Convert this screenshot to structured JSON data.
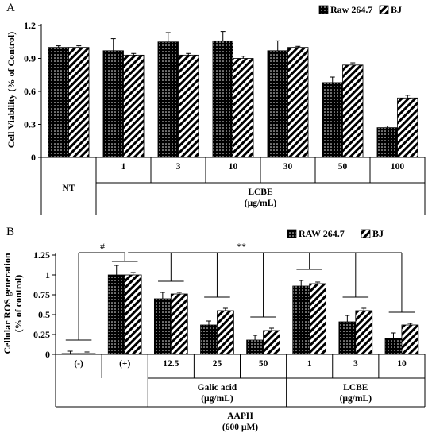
{
  "chart_data": [
    {
      "type": "bar",
      "panel_label": "A",
      "ylabel": "Cell Viability (% of Control)",
      "ylim": [
        0,
        1.2
      ],
      "yticks": [
        "0",
        "0.3",
        "0.6",
        "0.9",
        "1.2"
      ],
      "ytick_values": [
        0,
        0.3,
        0.6,
        0.9,
        1.2
      ],
      "categories": [
        "NT",
        "1",
        "3",
        "10",
        "30",
        "50",
        "100"
      ],
      "groups": [
        {
          "label": "LCBE",
          "sub": "(µg/mL)",
          "from": 1,
          "to": 6
        }
      ],
      "legend": {
        "position": "top-right"
      },
      "series": [
        {
          "name": "Raw 264.7",
          "pattern": "dots",
          "values": [
            1.0,
            0.97,
            1.05,
            1.06,
            0.97,
            0.68,
            0.27
          ],
          "errors": [
            0.015,
            0.11,
            0.085,
            0.085,
            0.09,
            0.05,
            0.015
          ]
        },
        {
          "name": "BJ",
          "pattern": "stripes",
          "values": [
            1.0,
            0.93,
            0.93,
            0.9,
            1.0,
            0.84,
            0.54
          ],
          "errors": [
            0.015,
            0.015,
            0.015,
            0.02,
            0.01,
            0.02,
            0.025
          ]
        }
      ]
    },
    {
      "type": "bar",
      "panel_label": "B",
      "ylabel": "Cellular ROS generation (% of control)",
      "ylabel_lines": [
        "Cellular ROS generation",
        "(% of control)"
      ],
      "ylim": [
        0,
        1.25
      ],
      "yticks": [
        "0",
        "0.25",
        "0.5",
        "0.75",
        "1",
        "1.25"
      ],
      "ytick_values": [
        0,
        0.25,
        0.5,
        0.75,
        1.0,
        1.25
      ],
      "categories": [
        "(-)",
        "(+)",
        "12.5",
        "25",
        "50",
        "1",
        "3",
        "10"
      ],
      "groups": [
        {
          "label": "Galic acid",
          "sub": "(µg/mL)",
          "from": 2,
          "to": 4
        },
        {
          "label": "LCBE",
          "sub": "(µg/mL)",
          "from": 5,
          "to": 7
        }
      ],
      "outer_group": {
        "label": "AAPH",
        "sub": "(600 µM)"
      },
      "annotations": [
        "#",
        "**"
      ],
      "legend": {
        "position": "top-right"
      },
      "series": [
        {
          "name": "RAW 264.7",
          "pattern": "dots",
          "values": [
            0.01,
            1.0,
            0.7,
            0.37,
            0.18,
            0.86,
            0.41,
            0.2
          ],
          "errors": [
            0.03,
            0.12,
            0.08,
            0.05,
            0.06,
            0.07,
            0.08,
            0.07
          ]
        },
        {
          "name": "BJ",
          "pattern": "stripes",
          "values": [
            0.01,
            1.0,
            0.76,
            0.55,
            0.3,
            0.89,
            0.55,
            0.37
          ],
          "errors": [
            0.02,
            0.03,
            0.02,
            0.03,
            0.03,
            0.02,
            0.03,
            0.02
          ]
        }
      ]
    }
  ]
}
